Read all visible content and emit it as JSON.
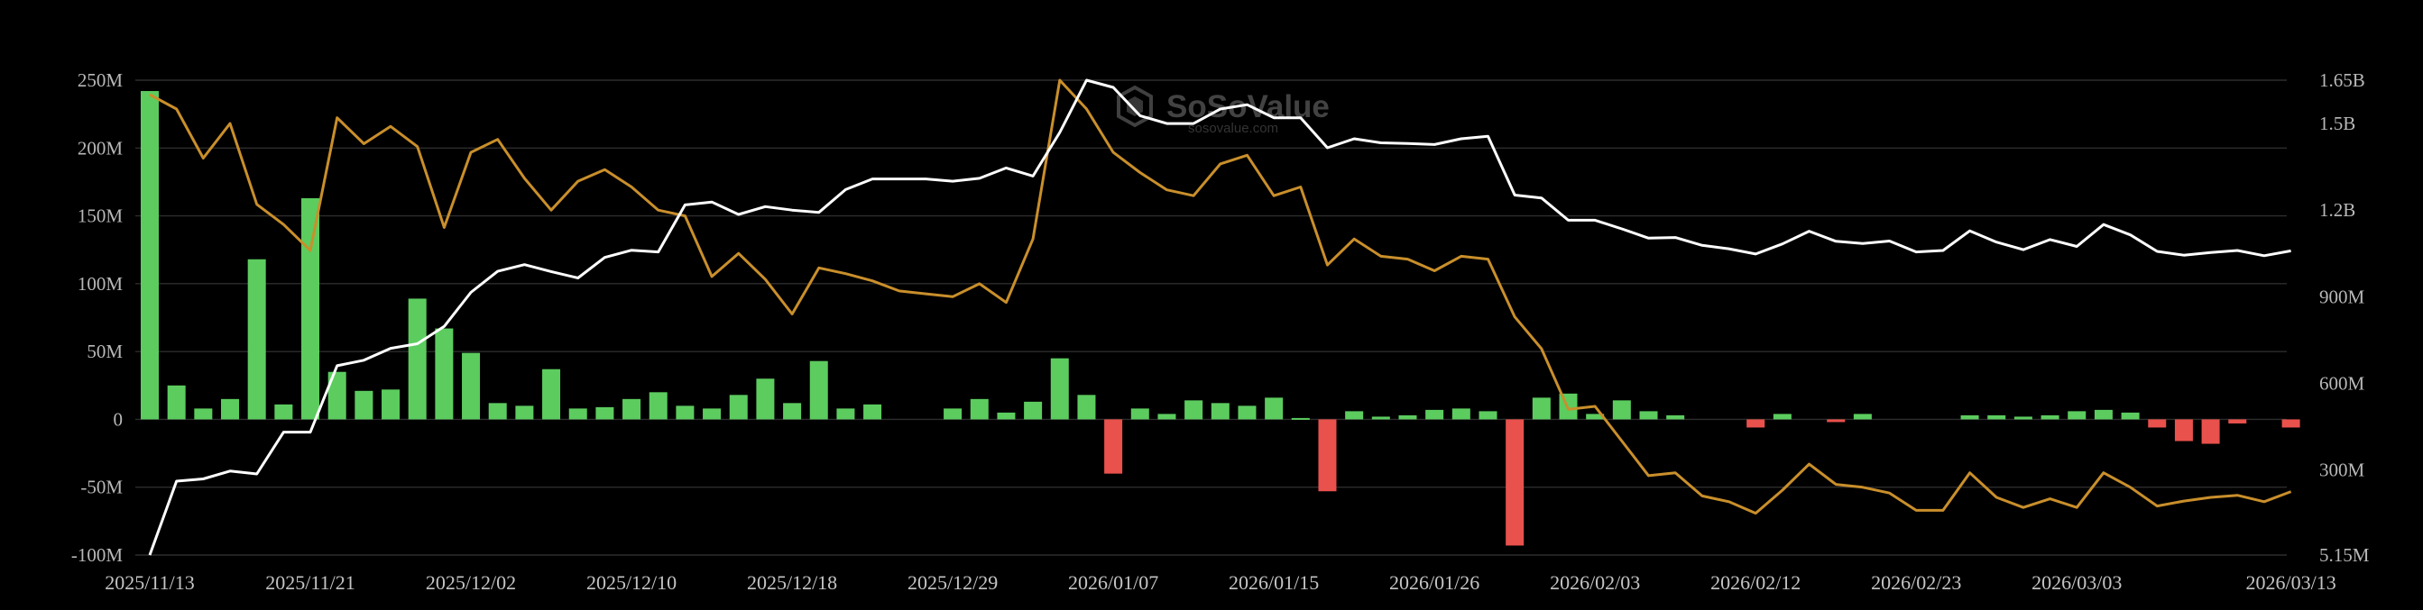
{
  "watermark": {
    "brand": "SoSoValue",
    "url": "sosovalue.com"
  },
  "colors": {
    "background": "#000000",
    "inflow_bar": "#5ccc5f",
    "outflow_bar": "#e9514c",
    "total_net_assets_line": "#ffffff",
    "price_line": "#c98f2b",
    "grid": "#2d2d2d"
  },
  "chart_data": {
    "type": "bar",
    "x_tick_labels": [
      "2025/11/13",
      "2025/11/21",
      "2025/12/02",
      "2025/12/10",
      "2025/12/18",
      "2025/12/29",
      "2026/01/07",
      "2026/01/15",
      "2026/01/26",
      "2026/02/03",
      "2026/02/12",
      "2026/02/23",
      "2026/03/03",
      "2026/03/13"
    ],
    "x_tick_index": [
      0,
      6,
      12,
      18,
      24,
      30,
      36,
      42,
      48,
      54,
      60,
      66,
      72,
      80
    ],
    "left_axis": {
      "ylim": [
        -100000000,
        250000000
      ],
      "ticks": [
        "250M",
        "200M",
        "150M",
        "100M",
        "50M",
        "0",
        "-50M",
        "-100M"
      ],
      "tick_values": [
        250000000,
        200000000,
        150000000,
        100000000,
        50000000,
        0,
        -50000000,
        -100000000
      ]
    },
    "right_axis": {
      "ylim": [
        5150000,
        1650000000
      ],
      "ticks": [
        "1.65B",
        "1.5B",
        "1.2B",
        "900M",
        "600M",
        "300M",
        "5.15M"
      ],
      "tick_values": [
        1650000000,
        1500000000,
        1200000000,
        900000000,
        600000000,
        300000000,
        5150000
      ]
    },
    "grid": true,
    "series": [
      {
        "kind": "bar",
        "axis": "left",
        "values": [
          242,
          25,
          8,
          15,
          118,
          11,
          163,
          35,
          21,
          22,
          89,
          67,
          49,
          12,
          10,
          37,
          8,
          9,
          15,
          20,
          10,
          8,
          18,
          30,
          12,
          43,
          8,
          11,
          null,
          null,
          8,
          15,
          5,
          13,
          45,
          18,
          -40,
          8,
          4,
          14,
          12,
          10,
          16,
          1,
          -53,
          6,
          2,
          3,
          7,
          8,
          6,
          -93,
          16,
          19,
          4,
          14,
          6,
          3,
          null,
          null,
          -6,
          4,
          null,
          -2,
          4,
          null,
          null,
          null,
          3,
          3,
          2,
          3,
          6,
          7,
          5,
          -6,
          -16,
          -18,
          -3,
          null,
          -6
        ]
      },
      {
        "kind": "line",
        "axis": "right",
        "values": [
          5.15,
          261,
          269,
          296,
          286,
          431,
          431,
          661,
          680,
          721,
          737,
          797,
          915,
          988,
          1011,
          987,
          965,
          1036,
          1061,
          1055,
          1218,
          1228,
          1185,
          1212,
          1200,
          1192,
          1271,
          1308,
          1308,
          1308,
          1300,
          1310,
          1346,
          1318,
          1469,
          1650,
          1625,
          1527,
          1500,
          1500,
          1550,
          1565,
          1520,
          1520,
          1416,
          1447,
          1433,
          1431,
          1427,
          1447,
          1456,
          1252,
          1242,
          1165,
          1165,
          1135,
          1103,
          1105,
          1078,
          1066,
          1048,
          1083,
          1127,
          1092,
          1084,
          1093,
          1055,
          1060,
          1128,
          1089,
          1063,
          1098,
          1074,
          1150,
          1114,
          1057,
          1044,
          1053,
          1060,
          1042,
          1059
        ]
      },
      {
        "kind": "line",
        "axis": "right",
        "values": [
          1600,
          1550,
          1380,
          1500,
          1220,
          1150,
          1060,
          1520,
          1430,
          1490,
          1420,
          1140,
          1400,
          1445,
          1310,
          1200,
          1300,
          1340,
          1280,
          1200,
          1180,
          970,
          1050,
          960,
          840,
          1000,
          980,
          955,
          920,
          910,
          900,
          945,
          880,
          1100,
          1650,
          1550,
          1400,
          1330,
          1270,
          1250,
          1360,
          1390,
          1250,
          1280,
          1010,
          1100,
          1040,
          1030,
          990,
          1040,
          1030,
          830,
          720,
          510,
          520,
          400,
          280,
          290,
          210,
          190,
          150,
          230,
          320,
          250,
          240,
          220,
          160,
          160,
          290,
          205,
          170,
          200,
          170,
          290,
          240,
          175,
          192,
          205,
          212,
          190,
          225
        ]
      }
    ]
  }
}
